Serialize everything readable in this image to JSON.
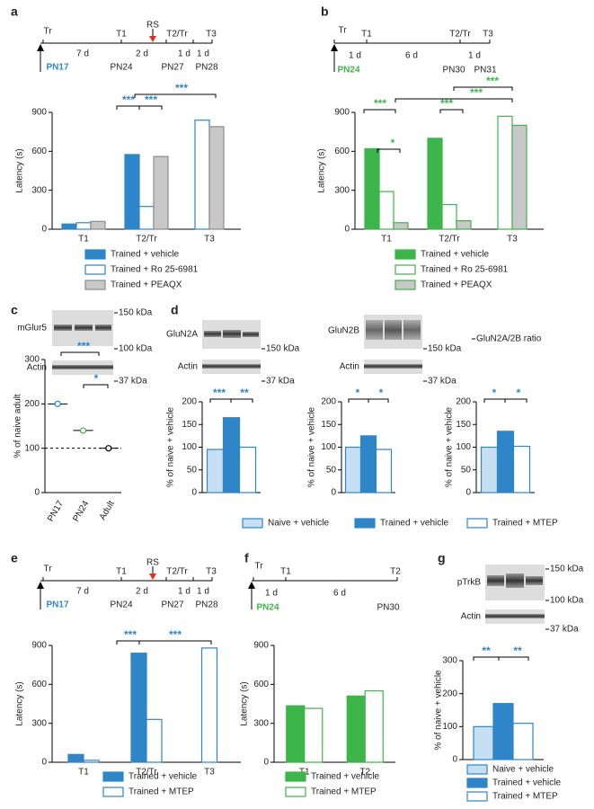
{
  "panels": [
    "a",
    "b",
    "c",
    "d",
    "e",
    "f",
    "g"
  ],
  "timelines": {
    "a": [
      "Tr",
      "T1",
      "RS",
      "T2/Tr",
      "T3",
      "7 d",
      "2 d",
      "1 d",
      "1 d",
      "PN17",
      "PN24",
      "PN27",
      "PN28"
    ],
    "b": [
      "Tr",
      "T1",
      "T2/Tr",
      "T3",
      "1 d",
      "6 d",
      "1 d",
      "PN24",
      "PN30",
      "PN31"
    ],
    "e": [
      "Tr",
      "T1",
      "RS",
      "T2/Tr",
      "T3",
      "7 d",
      "2 d",
      "1 d",
      "1 d",
      "PN17",
      "PN24",
      "PN27",
      "PN28"
    ],
    "f": [
      "Tr",
      "T1",
      "T2",
      "1 d",
      "6 d",
      "PN24",
      "PN30"
    ]
  },
  "blots": {
    "c": [
      "mGlur5",
      "Actin",
      "150 kDa",
      "100 kDa",
      "37 kDa"
    ],
    "d": [
      "GluN2A",
      "Actin",
      "150 kDa",
      "37 kDa",
      "GluN2B",
      "Actin",
      "150 kDa",
      "37 kDa",
      "GluN2A/2B ratio"
    ],
    "g": [
      "pTrkB",
      "Actin",
      "150 kDa",
      "100 kDa",
      "37 kDa"
    ]
  },
  "chart_data": [
    {
      "type": "bar",
      "y_label": "Latency (s)",
      "categories": [
        "T1",
        "T2/Tr",
        "T3"
      ],
      "series": [
        {
          "name": "Trained + vehicle",
          "color": "#2e86c8",
          "edge": "#2e86c8",
          "values": [
            40,
            575,
            null
          ]
        },
        {
          "name": "Trained + Ro 25-6981",
          "color": "#ffffff",
          "edge": "#2e86c8",
          "values": [
            50,
            175,
            840
          ]
        },
        {
          "name": "Trained + PEAQX",
          "color": "#c8c8c8",
          "edge": "#8c8c8c",
          "values": [
            60,
            560,
            790
          ]
        }
      ],
      "ylim": [
        0,
        900
      ],
      "yticks": [
        0,
        300,
        600,
        900
      ],
      "annotations": [
        {
          "text": "***",
          "color": "#2e86c8"
        },
        {
          "text": "***",
          "color": "#2e86c8"
        },
        {
          "text": "***",
          "color": "#2e86c8"
        }
      ]
    },
    {
      "type": "bar",
      "y_label": "Latency (s)",
      "categories": [
        "T1",
        "T2/Tr",
        "T3"
      ],
      "series": [
        {
          "name": "Trained + vehicle",
          "color": "#3cb54a",
          "edge": "#3cb54a",
          "values": [
            620,
            700,
            null
          ]
        },
        {
          "name": "Trained + Ro 25-6981",
          "color": "#ffffff",
          "edge": "#3cb54a",
          "values": [
            290,
            190,
            870
          ]
        },
        {
          "name": "Trained + PEAQX",
          "color": "#c8c8c8",
          "edge": "#3cb54a",
          "values": [
            50,
            65,
            800
          ]
        }
      ],
      "ylim": [
        0,
        900
      ],
      "yticks": [
        0,
        300,
        600,
        900
      ],
      "annotations": [
        {
          "text": "***",
          "color": "#3cb54a"
        },
        {
          "text": "*",
          "color": "#3cb54a"
        },
        {
          "text": "***",
          "color": "#3cb54a"
        },
        {
          "text": "***",
          "color": "#3cb54a"
        },
        {
          "text": "***",
          "color": "#3cb54a"
        }
      ]
    },
    {
      "type": "dot",
      "y_label": "% of naive adult",
      "categories": [
        "PN17",
        "PN24",
        "Adult"
      ],
      "values": [
        200,
        140,
        100
      ],
      "colors": [
        "#2e86c8",
        "#3cb54a",
        "#000000"
      ],
      "ylim": [
        0,
        300
      ],
      "yticks": [
        0,
        100,
        200,
        300
      ],
      "reference_line": 100,
      "annotations": [
        {
          "text": "***",
          "color": "#2e86c8"
        },
        {
          "text": "*",
          "color": "#2e86c8"
        }
      ]
    },
    {
      "type": "bar",
      "y_label": "% of naive + vehicle",
      "series": [
        {
          "name": "Naive + vehicle",
          "color": "#c6dff2",
          "edge": "#2e86c8",
          "values": [
            95
          ]
        },
        {
          "name": "Trained + vehicle",
          "color": "#2e86c8",
          "edge": "#2e86c8",
          "values": [
            165
          ]
        },
        {
          "name": "Trained + MTEP",
          "color": "#ffffff",
          "edge": "#2e86c8",
          "values": [
            100
          ]
        }
      ],
      "ylim": [
        0,
        200
      ],
      "yticks": [
        0,
        50,
        100,
        150,
        200
      ],
      "annotations": [
        {
          "text": "***",
          "color": "#2e86c8"
        },
        {
          "text": "**",
          "color": "#2e86c8"
        }
      ]
    },
    {
      "type": "bar",
      "y_label": "% of naive + vehicle",
      "series": [
        {
          "color": "#c6dff2",
          "edge": "#2e86c8",
          "values": [
            100
          ]
        },
        {
          "color": "#2e86c8",
          "edge": "#2e86c8",
          "values": [
            125
          ]
        },
        {
          "color": "#ffffff",
          "edge": "#2e86c8",
          "values": [
            95
          ]
        }
      ],
      "ylim": [
        0,
        200
      ],
      "yticks": [
        0,
        50,
        100,
        150,
        200
      ],
      "annotations": [
        {
          "text": "*",
          "color": "#2e86c8"
        },
        {
          "text": "*",
          "color": "#2e86c8"
        }
      ]
    },
    {
      "type": "bar",
      "y_label": "% of naive + vehicle",
      "series": [
        {
          "color": "#c6dff2",
          "edge": "#2e86c8",
          "values": [
            100
          ]
        },
        {
          "color": "#2e86c8",
          "edge": "#2e86c8",
          "values": [
            135
          ]
        },
        {
          "color": "#ffffff",
          "edge": "#2e86c8",
          "values": [
            102
          ]
        }
      ],
      "ylim": [
        0,
        200
      ],
      "yticks": [
        0,
        50,
        100,
        150,
        200
      ],
      "annotations": [
        {
          "text": "*",
          "color": "#2e86c8"
        },
        {
          "text": "*",
          "color": "#2e86c8"
        }
      ]
    },
    {
      "type": "bar",
      "y_label": "Latency (s)",
      "categories": [
        "T1",
        "T2/Tr",
        "T3"
      ],
      "series": [
        {
          "name": "Trained + vehicle",
          "color": "#2e86c8",
          "edge": "#2e86c8",
          "values": [
            60,
            840,
            null
          ]
        },
        {
          "name": "Trained + MTEP",
          "color": "#ffffff",
          "edge": "#2e86c8",
          "values": [
            15,
            330,
            880
          ]
        }
      ],
      "ylim": [
        0,
        900
      ],
      "yticks": [
        0,
        300,
        600,
        900
      ],
      "annotations": [
        {
          "text": "***",
          "color": "#2e86c8"
        },
        {
          "text": "***",
          "color": "#2e86c8"
        }
      ]
    },
    {
      "type": "bar",
      "y_label": "Latency (s)",
      "categories": [
        "T1",
        "T2"
      ],
      "series": [
        {
          "name": "Trained + vehicle",
          "color": "#3cb54a",
          "edge": "#3cb54a",
          "values": [
            435,
            510
          ]
        },
        {
          "name": "Trained + MTEP",
          "color": "#ffffff",
          "edge": "#3cb54a",
          "values": [
            415,
            550
          ]
        }
      ],
      "ylim": [
        0,
        900
      ],
      "yticks": [
        0,
        300,
        600,
        900
      ]
    },
    {
      "type": "bar",
      "y_label": "% of naive + vehicle",
      "series": [
        {
          "name": "Naive + vehicle",
          "color": "#c6dff2",
          "edge": "#2e86c8",
          "values": [
            100
          ]
        },
        {
          "name": "Trained + vehicle",
          "color": "#2e86c8",
          "edge": "#2e86c8",
          "values": [
            170
          ]
        },
        {
          "name": "Trained + MTEP",
          "color": "#ffffff",
          "edge": "#2e86c8",
          "values": [
            110
          ]
        }
      ],
      "ylim": [
        0,
        300
      ],
      "yticks": [
        0,
        100,
        200,
        300
      ],
      "annotations": [
        {
          "text": "**",
          "color": "#2e86c8"
        },
        {
          "text": "**",
          "color": "#2e86c8"
        }
      ]
    }
  ]
}
